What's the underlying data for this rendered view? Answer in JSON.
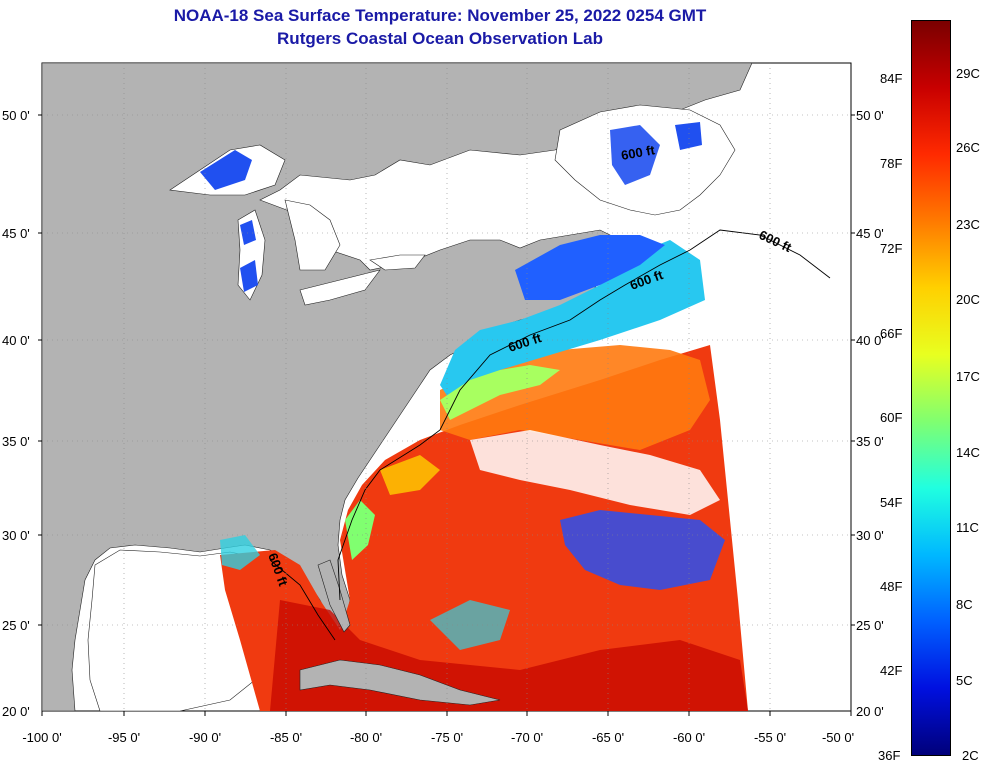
{
  "title": {
    "line1": "NOAA-18 Sea Surface Temperature:  November 25, 2022 0254 GMT",
    "line2": "Rutgers Coastal Ocean Observation Lab"
  },
  "axes": {
    "lat_labels": [
      "50 0'",
      "45 0'",
      "40 0'",
      "35 0'",
      "30 0'",
      "25 0'",
      "20 0'"
    ],
    "lon_labels": [
      "-100 0'",
      "-95 0'",
      "-90 0'",
      "-85 0'",
      "-80 0'",
      "-75 0'",
      "-70 0'",
      "-65 0'",
      "-60 0'",
      "-55 0'",
      "-50 0'"
    ]
  },
  "depth_contour_label": "600 ft",
  "colorbar": {
    "fahrenheit": [
      "84F",
      "78F",
      "72F",
      "66F",
      "60F",
      "54F",
      "48F",
      "42F",
      "36F"
    ],
    "celsius": [
      "29C",
      "26C",
      "23C",
      "20C",
      "17C",
      "14C",
      "11C",
      "8C",
      "5C",
      "2C"
    ],
    "gradient_colors": [
      "#7a0000",
      "#c80000",
      "#ff2a00",
      "#ff7a00",
      "#ffd000",
      "#e8ff20",
      "#80ff70",
      "#20ffe0",
      "#00b8ff",
      "#0060ff",
      "#0010e0",
      "#00007a"
    ]
  },
  "colors": {
    "land": "#b3b3b3",
    "ocean_no_data": "#ffffff",
    "title": "#1a1aa6"
  }
}
